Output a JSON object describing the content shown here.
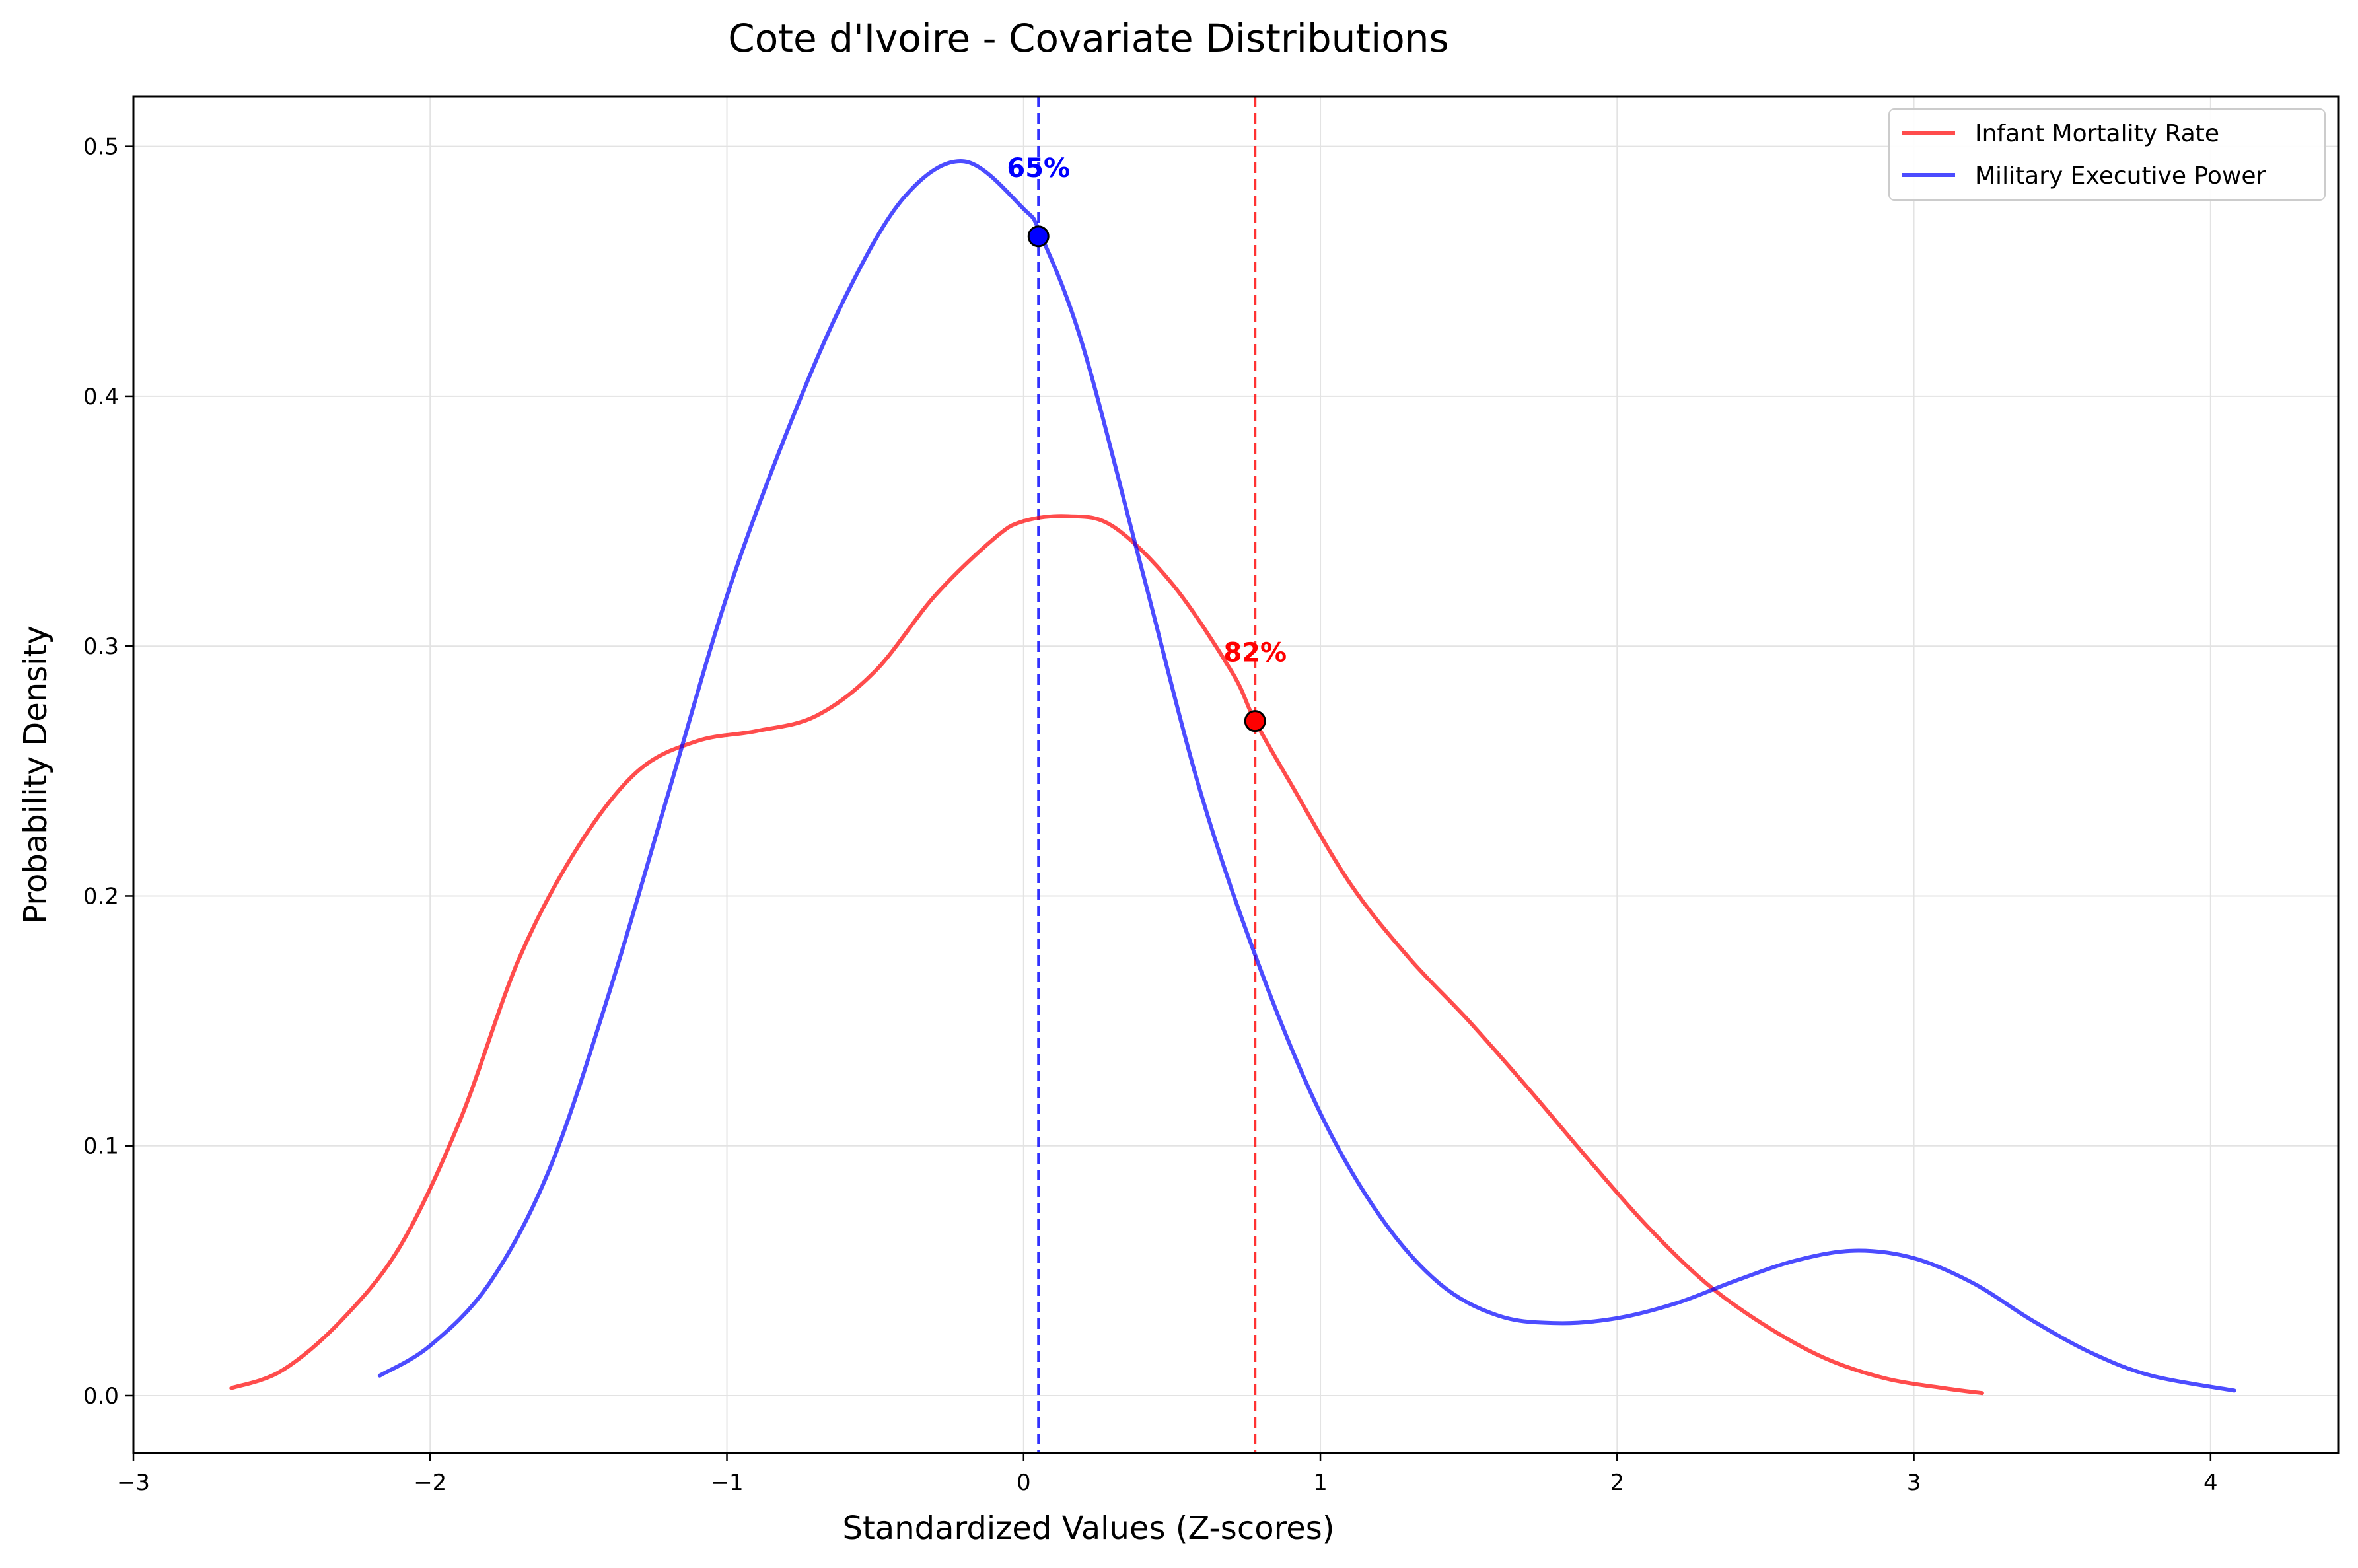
{
  "chart_data": {
    "type": "line",
    "title": "Cote d'Ivoire - Covariate Distributions",
    "xlabel": "Standardized Values (Z-scores)",
    "ylabel": "Probability Density",
    "xlim": [
      -3,
      4.43
    ],
    "ylim": [
      -0.023,
      0.52
    ],
    "x_ticks": [
      -3,
      -2,
      -1,
      0,
      1,
      2,
      3,
      4
    ],
    "x_tick_labels": [
      "−3",
      "−2",
      "−1",
      "0",
      "1",
      "2",
      "3",
      "4"
    ],
    "y_ticks": [
      0.0,
      0.1,
      0.2,
      0.3,
      0.4,
      0.5
    ],
    "y_tick_labels": [
      "0.0",
      "0.1",
      "0.2",
      "0.3",
      "0.4",
      "0.5"
    ],
    "grid": true,
    "legend_position": "top-right",
    "series": [
      {
        "name": "Infant Mortality Rate",
        "color": "#ff0000",
        "x": [
          -2.67,
          -2.5,
          -2.3,
          -2.1,
          -1.9,
          -1.7,
          -1.5,
          -1.3,
          -1.1,
          -0.9,
          -0.7,
          -0.5,
          -0.3,
          -0.1,
          0.0,
          0.15,
          0.3,
          0.5,
          0.7,
          0.78,
          0.9,
          1.1,
          1.3,
          1.5,
          1.7,
          1.9,
          2.1,
          2.3,
          2.5,
          2.7,
          2.9,
          3.1,
          3.23
        ],
        "y": [
          0.003,
          0.01,
          0.03,
          0.06,
          0.11,
          0.175,
          0.22,
          0.25,
          0.262,
          0.266,
          0.272,
          0.29,
          0.32,
          0.343,
          0.35,
          0.352,
          0.348,
          0.325,
          0.29,
          0.27,
          0.245,
          0.205,
          0.175,
          0.15,
          0.123,
          0.095,
          0.068,
          0.045,
          0.028,
          0.015,
          0.007,
          0.003,
          0.001
        ]
      },
      {
        "name": "Military Executive Power",
        "color": "#0000ff",
        "x": [
          -2.17,
          -2.0,
          -1.8,
          -1.6,
          -1.4,
          -1.2,
          -1.0,
          -0.8,
          -0.6,
          -0.4,
          -0.2,
          0.0,
          0.06,
          0.2,
          0.4,
          0.6,
          0.8,
          1.0,
          1.2,
          1.4,
          1.6,
          1.8,
          2.0,
          2.2,
          2.4,
          2.6,
          2.8,
          3.0,
          3.2,
          3.4,
          3.6,
          3.8,
          4.08
        ],
        "y": [
          0.008,
          0.02,
          0.045,
          0.09,
          0.16,
          0.24,
          0.32,
          0.385,
          0.44,
          0.48,
          0.494,
          0.475,
          0.464,
          0.42,
          0.33,
          0.24,
          0.17,
          0.113,
          0.072,
          0.045,
          0.032,
          0.029,
          0.031,
          0.037,
          0.046,
          0.054,
          0.058,
          0.055,
          0.045,
          0.03,
          0.017,
          0.008,
          0.002
        ]
      }
    ],
    "markers": [
      {
        "series": "Military Executive Power",
        "x": 0.05,
        "y": 0.464,
        "label": "65%",
        "color": "#0000ff"
      },
      {
        "series": "Infant Mortality Rate",
        "x": 0.78,
        "y": 0.27,
        "label": "82%",
        "color": "#ff0000"
      }
    ]
  }
}
